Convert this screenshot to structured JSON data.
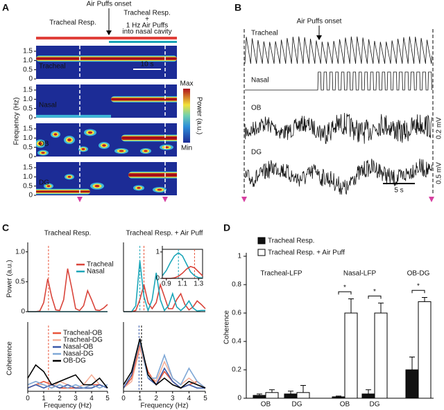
{
  "panel_a": {
    "panel_label": "A",
    "onset_label": "Air Puffs onset",
    "before_label": "Tracheal Resp.",
    "after_label": {
      "line1": "Tracheal Resp.",
      "plus": "+",
      "line2": "1 Hz Air Puffs",
      "line3": "into nasal cavity"
    },
    "rows": [
      "Tracheal",
      "Nasal",
      "OB",
      "DG"
    ],
    "ylim": [
      0,
      1.8
    ],
    "yticks": [
      0,
      0.5,
      {
        "value": 1,
        "label": "1.0"
      },
      1.5
    ],
    "ylabel": "Frequency (Hz)",
    "scale_label": "10 s",
    "colorbar": {
      "max": "Max",
      "min": "Min",
      "label": "Power (a.u.)"
    }
  },
  "panel_b": {
    "panel_label": "B",
    "onset_label": "Air Puffs onset",
    "rows": [
      "Tracheal",
      "Nasal",
      "OB",
      "DG"
    ],
    "ob_scale": "0.2 mV",
    "dg_scale": "0.5 mV",
    "time_scale": "5 s"
  },
  "panel_c": {
    "panel_label": "C"
  },
  "panel_d": {
    "panel_label": "D"
  },
  "chart_data": [
    {
      "type": "line",
      "title": "Tracheal Resp.",
      "ylabel": "Power (a.u.)",
      "xlim": [
        0,
        5
      ],
      "ylim": [
        0,
        1.1
      ],
      "yticks": [
        0,
        0.5,
        {
          "value": 1,
          "label": "1.0"
        }
      ],
      "legend": "upper right",
      "x": [
        0,
        0.25,
        0.5,
        0.75,
        1,
        1.25,
        1.5,
        1.75,
        2,
        2.25,
        2.5,
        2.75,
        3,
        3.25,
        3.5,
        3.75,
        4,
        4.25,
        4.5,
        4.75,
        5
      ],
      "ref_lines": [
        {
          "x": 1.3,
          "color": "#e8553a"
        }
      ],
      "series": [
        {
          "name": "Tracheal",
          "color": "#d9443a",
          "values": [
            0,
            0,
            0,
            0.01,
            0.15,
            0.55,
            0.25,
            0.03,
            0.02,
            0.2,
            0.72,
            0.4,
            0.05,
            0.02,
            0.1,
            0.35,
            0.2,
            0.03,
            0.02,
            0.06,
            0.12
          ]
        },
        {
          "name": "Nasal",
          "color": "#1aa5b8",
          "values": [
            0,
            0,
            0,
            0,
            0,
            0,
            0,
            0,
            0,
            0,
            0,
            0,
            0,
            0,
            0,
            0,
            0,
            0,
            0,
            0,
            0
          ]
        }
      ]
    },
    {
      "type": "line",
      "title": "Tracheal Resp. + Air Puff",
      "xlim": [
        0,
        5
      ],
      "ylim": [
        0,
        1.1
      ],
      "x": [
        0,
        0.25,
        0.5,
        0.75,
        1,
        1.25,
        1.5,
        1.75,
        2,
        2.25,
        2.5,
        2.75,
        3,
        3.25,
        3.5,
        3.75,
        4,
        4.25,
        4.5,
        4.75,
        5
      ],
      "ref_lines": [
        {
          "x": 1,
          "color": "#1aa5b8"
        },
        {
          "x": 1.25,
          "color": "#e8553a"
        }
      ],
      "series": [
        {
          "color": "#d9443a",
          "values": [
            0,
            0,
            0,
            0.02,
            0.2,
            0.45,
            0.15,
            0.05,
            0.15,
            0.45,
            0.25,
            0.05,
            0.05,
            0.2,
            0.3,
            0.12,
            0.03,
            0.08,
            0.18,
            0.12,
            0.05
          ]
        },
        {
          "color": "#1aa5b8",
          "values": [
            0,
            0,
            0,
            0.1,
            0.85,
            0.25,
            0.02,
            0.2,
            0.65,
            0.2,
            0.02,
            0.1,
            0.3,
            0.08,
            0.02,
            0.08,
            0.18,
            0.06,
            0.01,
            0.02,
            0.02
          ]
        }
      ]
    },
    {
      "type": "line",
      "xlim": [
        0.85,
        1.35
      ],
      "ylim": [
        0,
        1.1
      ],
      "xticks": [
        0.9,
        1.1,
        1.3
      ],
      "yticks": [
        0,
        1
      ],
      "x": [
        0.85,
        0.9,
        0.95,
        1,
        1.05,
        1.1,
        1.15,
        1.2,
        1.25,
        1.3,
        1.35
      ],
      "ref_lines": [
        {
          "x": 1.05,
          "color": "#1aa5b8"
        },
        {
          "x": 1.25,
          "color": "#e8553a"
        }
      ],
      "series": [
        {
          "color": "#1aa5b8",
          "values": [
            0.1,
            0.3,
            0.6,
            0.85,
            0.97,
            0.85,
            0.55,
            0.25,
            0.1,
            0.03,
            0.01
          ]
        },
        {
          "color": "#d9443a",
          "values": [
            0,
            0,
            0,
            0.02,
            0.08,
            0.2,
            0.35,
            0.45,
            0.4,
            0.25,
            0.1
          ]
        }
      ]
    },
    {
      "type": "line",
      "ylabel": "Coherence",
      "xlabel": "Frequency (Hz)",
      "xlim": [
        0,
        5
      ],
      "ylim": [
        0,
        1
      ],
      "xticks": [
        0,
        1,
        2,
        3,
        4,
        5
      ],
      "legend": "upper right",
      "x": [
        0,
        0.5,
        1,
        1.5,
        2,
        2.5,
        3,
        3.5,
        4,
        4.5,
        5
      ],
      "ref_lines": [
        {
          "x": 1.3,
          "color": "#e8553a"
        }
      ],
      "series": [
        {
          "name": "Tracheal-OB",
          "color": "#e8553a",
          "values": [
            0.05,
            0.1,
            0.15,
            0.1,
            0.05,
            0.05,
            0.05,
            0.05,
            0.1,
            0.1,
            0.05
          ]
        },
        {
          "name": "Tracheal-DG",
          "color": "#f4b09a",
          "values": [
            0.05,
            0.1,
            0.1,
            0.05,
            0.15,
            0.1,
            0.05,
            0.1,
            0.25,
            0.1,
            0.05
          ]
        },
        {
          "name": "Nasal-OB",
          "color": "#3a5aa8",
          "values": [
            0.05,
            0.1,
            0.05,
            0.1,
            0.05,
            0.1,
            0.05,
            0.05,
            0.05,
            0.1,
            0.05
          ]
        },
        {
          "name": "Nasal-DG",
          "color": "#7fa8d6",
          "values": [
            0.1,
            0.15,
            0.1,
            0.05,
            0.1,
            0.05,
            0.1,
            0.05,
            0.1,
            0.05,
            0.1
          ]
        },
        {
          "name": "OB-DG",
          "color": "#000000",
          "values": [
            0.2,
            0.4,
            0.3,
            0.1,
            0.15,
            0.2,
            0.25,
            0.1,
            0.1,
            0.2,
            0.05
          ]
        }
      ]
    },
    {
      "type": "line",
      "xlabel": "Frequency (Hz)",
      "xlim": [
        0,
        5
      ],
      "ylim": [
        0,
        1
      ],
      "xticks": [
        0,
        1,
        2,
        3,
        4,
        5
      ],
      "x": [
        0,
        0.5,
        1,
        1.5,
        2,
        2.5,
        3,
        3.5,
        4,
        4.5,
        5
      ],
      "ref_lines": [
        {
          "x": 0.95,
          "color": "#3a5aa8"
        },
        {
          "x": 1.1,
          "color": "#000000"
        }
      ],
      "series": [
        {
          "color": "#e8553a",
          "values": [
            0.05,
            0.2,
            0.7,
            0.3,
            0.1,
            0.3,
            0.15,
            0.05,
            0.1,
            0.15,
            0.05
          ]
        },
        {
          "color": "#f4b09a",
          "values": [
            0.05,
            0.15,
            0.65,
            0.25,
            0.15,
            0.45,
            0.2,
            0.1,
            0.2,
            0.1,
            0.05
          ]
        },
        {
          "color": "#3a5aa8",
          "values": [
            0.05,
            0.25,
            0.78,
            0.2,
            0.1,
            0.35,
            0.15,
            0.05,
            0.1,
            0.05,
            0.05
          ]
        },
        {
          "color": "#7fa8d6",
          "values": [
            0.1,
            0.3,
            0.75,
            0.2,
            0.2,
            0.55,
            0.2,
            0.1,
            0.35,
            0.15,
            0.05
          ]
        },
        {
          "color": "#000000",
          "values": [
            0.1,
            0.3,
            0.8,
            0.25,
            0.1,
            0.2,
            0.1,
            0.05,
            0.15,
            0.1,
            0.05
          ]
        }
      ]
    },
    {
      "type": "bar",
      "ylabel": "Coherence",
      "ylim": [
        0,
        1
      ],
      "yticks": [
        0,
        0.2,
        0.4,
        0.6,
        0.8,
        1
      ],
      "categories": [
        "OB",
        "DG",
        "OB",
        "DG",
        null
      ],
      "group_labels": [
        "Tracheal-LFP",
        "Nasal-LFP",
        "OB-DG"
      ],
      "significance": [
        "*",
        "*",
        "*"
      ],
      "series": [
        {
          "name": "Tracheal Resp.",
          "color": "#111111",
          "values": [
            0.02,
            0.03,
            0.01,
            0.03,
            0.2
          ],
          "errors": [
            0.01,
            0.02,
            0.005,
            0.03,
            0.09
          ]
        },
        {
          "name": "Tracheal Resp. + Air Puff",
          "color": "#ffffff",
          "values": [
            0.04,
            0.04,
            0.6,
            0.6,
            0.68
          ],
          "errors": [
            0.02,
            0.05,
            0.1,
            0.07,
            0.03
          ]
        }
      ]
    }
  ]
}
